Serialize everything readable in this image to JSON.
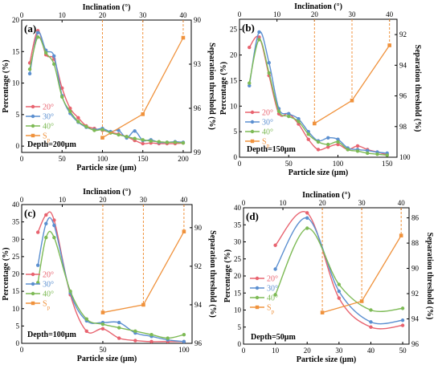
{
  "colors": {
    "d20": "#e8636f",
    "d30": "#5b8fd0",
    "d40": "#7dba55",
    "sp": "#f0923c",
    "axis": "#000000"
  },
  "chart_data": [
    {
      "type": "line",
      "panel": "(a)",
      "xlabel": "Particle size (μm)",
      "ylabel": "Percentage (%)",
      "top_xlabel": "Inclination (°)",
      "right_ylabel": "Separation threshold (%)",
      "depth_label": "Depth=200μm",
      "xlim": [
        0,
        210
      ],
      "ylim": [
        -1,
        20
      ],
      "xticks": [
        0,
        50,
        100,
        150,
        200
      ],
      "yticks": [
        0,
        5,
        10,
        15,
        20
      ],
      "top_xlim": [
        0,
        42
      ],
      "top_xticks": [
        0,
        10,
        20,
        30,
        40
      ],
      "right_ylim": [
        99,
        90
      ],
      "right_yticks": [
        90,
        93,
        96,
        99
      ],
      "legend": [
        "20°",
        "30°",
        "40°",
        "S<tspan baseline-shift='sub' font-size='8'>p</tspan>"
      ],
      "legend_labels": [
        "20°",
        "30°",
        "40°",
        "Sp"
      ],
      "legend_position": "center-left",
      "series": [
        {
          "name": "20°",
          "x": [
            10,
            20,
            30,
            40,
            50,
            60,
            70,
            80,
            90,
            100,
            110,
            120,
            130,
            140,
            150,
            160,
            170,
            180,
            190,
            200
          ],
          "y": [
            13.2,
            18.3,
            14.5,
            13.8,
            9.2,
            6.0,
            4.5,
            3.2,
            2.8,
            2.5,
            2.2,
            1.9,
            1.5,
            0.9,
            0.4,
            0.5,
            0.4,
            0.4,
            0.4,
            0.5
          ]
        },
        {
          "name": "30°",
          "x": [
            10,
            20,
            30,
            40,
            50,
            60,
            70,
            80,
            90,
            100,
            110,
            120,
            130,
            140,
            150,
            160,
            170,
            180,
            190,
            200
          ],
          "y": [
            11.5,
            18.0,
            15.2,
            14.3,
            8.0,
            5.2,
            3.8,
            3.0,
            2.6,
            2.8,
            2.3,
            2.5,
            1.3,
            2.4,
            0.9,
            1.0,
            0.6,
            0.6,
            0.7,
            0.6
          ]
        },
        {
          "name": "40°",
          "x": [
            10,
            20,
            30,
            40,
            50,
            60,
            70,
            80,
            90,
            100,
            110,
            120,
            130,
            140,
            150,
            160,
            170,
            180,
            190,
            200
          ],
          "y": [
            12.2,
            17.3,
            14.8,
            13.0,
            7.8,
            5.5,
            3.9,
            3.1,
            2.5,
            2.6,
            2.1,
            1.8,
            1.5,
            1.2,
            1.0,
            0.8,
            0.7,
            0.6,
            0.6,
            0.5
          ]
        }
      ],
      "sp": {
        "name": "Sp",
        "x": [
          20,
          30,
          40
        ],
        "y": [
          98.0,
          96.4,
          91.2
        ]
      }
    },
    {
      "type": "line",
      "panel": "(b)",
      "xlabel": "Particle size (μm)",
      "ylabel": "Percentage (%)",
      "top_xlabel": "Inclination (°)",
      "right_ylabel": "Separation threshold (%)",
      "depth_label": "Depth=150μm",
      "xlim": [
        0,
        160
      ],
      "ylim": [
        0,
        27
      ],
      "xticks": [
        0,
        50,
        100,
        150
      ],
      "yticks": [
        0,
        5,
        10,
        15,
        20,
        25
      ],
      "top_xlim": [
        0,
        42
      ],
      "top_xticks": [
        0,
        10,
        20,
        30,
        40
      ],
      "right_ylim": [
        100,
        91
      ],
      "right_yticks": [
        92,
        94,
        96,
        98,
        100
      ],
      "legend_labels": [
        "20°",
        "30°",
        "40°",
        "Sp"
      ],
      "legend_position": "center-left",
      "series": [
        {
          "name": "20°",
          "x": [
            10,
            20,
            30,
            40,
            50,
            60,
            70,
            80,
            90,
            100,
            110,
            120,
            130,
            140,
            150
          ],
          "y": [
            21.5,
            23.5,
            16.0,
            8.5,
            8.5,
            6.5,
            3.5,
            1.5,
            2.0,
            2.5,
            1.5,
            2.2,
            1.5,
            1.0,
            0.5
          ]
        },
        {
          "name": "30°",
          "x": [
            10,
            20,
            30,
            40,
            50,
            60,
            70,
            80,
            90,
            100,
            110,
            120,
            130,
            140,
            150
          ],
          "y": [
            14.0,
            24.5,
            18.5,
            9.5,
            8.5,
            7.5,
            5.0,
            3.2,
            3.8,
            3.5,
            1.8,
            1.5,
            1.3,
            1.0,
            0.8
          ]
        },
        {
          "name": "40°",
          "x": [
            10,
            20,
            30,
            40,
            50,
            60,
            70,
            80,
            90,
            100,
            110,
            120,
            130,
            140,
            150
          ],
          "y": [
            14.5,
            23.0,
            16.5,
            9.0,
            8.0,
            7.0,
            4.5,
            3.0,
            2.5,
            3.0,
            1.5,
            1.2,
            0.8,
            0.6,
            0.4
          ]
        }
      ],
      "sp": {
        "name": "Sp",
        "x": [
          20,
          30,
          40
        ],
        "y": [
          97.8,
          96.3,
          92.7
        ]
      }
    },
    {
      "type": "line",
      "panel": "(c)",
      "xlabel": "Particle size (μm)",
      "ylabel": "Percentage (%)",
      "top_xlabel": "Inclination (°)",
      "right_ylabel": "Separation threshold (%)",
      "depth_label": "Depth=100μm",
      "xlim": [
        0,
        105
      ],
      "ylim": [
        0,
        40
      ],
      "xticks": [
        0,
        50,
        100
      ],
      "yticks": [
        0,
        5,
        10,
        15,
        20,
        25,
        30,
        35,
        40
      ],
      "top_xlim": [
        0,
        42
      ],
      "top_xticks": [
        0,
        10,
        20,
        30,
        40
      ],
      "right_ylim": [
        96,
        88.8
      ],
      "right_yticks": [
        90,
        92,
        94,
        96
      ],
      "legend_labels": [
        "20°",
        "30°",
        "40°",
        "Sp"
      ],
      "legend_position": "center-left",
      "series": [
        {
          "name": "20°",
          "x": [
            10,
            15,
            20,
            30,
            40,
            50,
            60,
            70,
            80,
            90,
            100
          ],
          "y": [
            32.0,
            37.0,
            35.5,
            14.0,
            3.5,
            4.2,
            1.5,
            0.8,
            0.5,
            0.5,
            0.5
          ]
        },
        {
          "name": "30°",
          "x": [
            10,
            15,
            20,
            30,
            40,
            50,
            60,
            70,
            80,
            90,
            100
          ],
          "y": [
            22.5,
            34.5,
            34.0,
            14.5,
            6.5,
            6.0,
            6.0,
            3.0,
            2.0,
            1.0,
            0.5
          ]
        },
        {
          "name": "40°",
          "x": [
            10,
            15,
            20,
            30,
            40,
            50,
            60,
            70,
            80,
            90,
            100
          ],
          "y": [
            17.5,
            30.5,
            30.5,
            15.0,
            7.0,
            5.5,
            4.5,
            3.5,
            2.5,
            1.5,
            2.5
          ]
        }
      ],
      "sp": {
        "name": "Sp",
        "x": [
          20,
          30,
          40
        ],
        "y": [
          94.4,
          94.0,
          90.2
        ]
      }
    },
    {
      "type": "line",
      "panel": "(d)",
      "xlabel": "Particle size (μm)",
      "ylabel": "Percentage (%)",
      "top_xlabel": "Inclination (°)",
      "right_ylabel": "Separation threshold (%)",
      "depth_label": "Depth=50μm",
      "xlim": [
        0,
        52
      ],
      "ylim": [
        0,
        40
      ],
      "xticks": [
        0,
        10,
        20,
        30,
        40,
        50
      ],
      "yticks": [
        0,
        5,
        10,
        15,
        20,
        25,
        30,
        35,
        40
      ],
      "top_xlim": [
        0,
        42
      ],
      "top_xticks": [
        0,
        10,
        20,
        30,
        40
      ],
      "right_ylim": [
        96,
        85.2
      ],
      "right_yticks": [
        86,
        88,
        90,
        92,
        94,
        96
      ],
      "legend_labels": [
        "20°",
        "30°",
        "40°",
        "Sp"
      ],
      "legend_position": "center-left",
      "series": [
        {
          "name": "20°",
          "x": [
            10,
            20,
            30,
            40,
            50
          ],
          "y": [
            29.0,
            38.5,
            13.5,
            5.0,
            5.5
          ]
        },
        {
          "name": "30°",
          "x": [
            10,
            20,
            30,
            40,
            50
          ],
          "y": [
            22.0,
            37.0,
            15.5,
            6.5,
            7.0
          ]
        },
        {
          "name": "40°",
          "x": [
            10,
            20,
            30,
            40,
            50
          ],
          "y": [
            14.5,
            34.0,
            17.5,
            10.0,
            10.5
          ]
        }
      ],
      "sp": {
        "name": "Sp",
        "x": [
          20,
          30,
          40
        ],
        "y": [
          93.5,
          92.6,
          87.4
        ]
      }
    }
  ]
}
